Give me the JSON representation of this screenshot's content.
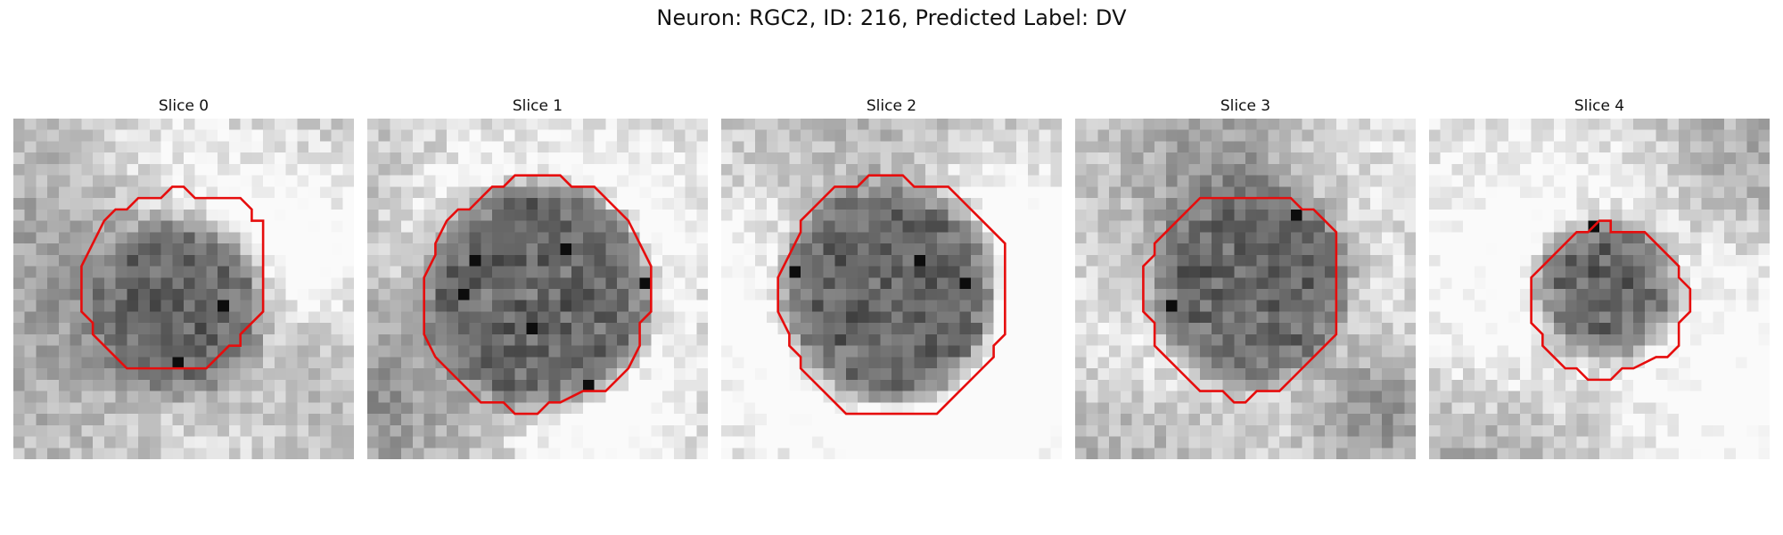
{
  "figure": {
    "title": "Neuron: RGC2, ID: 216, Predicted Label: DV"
  },
  "panels": [
    {
      "label": "Slice 0",
      "grid_size": 30,
      "contour_color": "#e60d0d",
      "image_description_tag": "grayscale-microscopy-tile",
      "dark_center": [
        14.5,
        16.5
      ],
      "dark_radius": 7.5,
      "brightness_bias": 0.05,
      "contour": [
        [
          14,
          6
        ],
        [
          15,
          6
        ],
        [
          16,
          7
        ],
        [
          20,
          7
        ],
        [
          21,
          8
        ],
        [
          21,
          9
        ],
        [
          22,
          9
        ],
        [
          22,
          12
        ],
        [
          22,
          17
        ],
        [
          21,
          18
        ],
        [
          20,
          19
        ],
        [
          20,
          20
        ],
        [
          19,
          20
        ],
        [
          18,
          21
        ],
        [
          17,
          22
        ],
        [
          17,
          22
        ],
        [
          10,
          22
        ],
        [
          9,
          21
        ],
        [
          8,
          20
        ],
        [
          7,
          19
        ],
        [
          7,
          18
        ],
        [
          6,
          17
        ],
        [
          6,
          13
        ],
        [
          7,
          11
        ],
        [
          8,
          9
        ],
        [
          9,
          8
        ],
        [
          10,
          8
        ],
        [
          11,
          7
        ],
        [
          13,
          7
        ]
      ]
    },
    {
      "label": "Slice 1",
      "grid_size": 30,
      "contour_color": "#e60d0d",
      "image_description_tag": "grayscale-microscopy-tile",
      "dark_center": [
        15,
        15.5
      ],
      "dark_radius": 10,
      "brightness_bias": 0.02,
      "contour": [
        [
          13,
          5
        ],
        [
          17,
          5
        ],
        [
          18,
          6
        ],
        [
          20,
          6
        ],
        [
          21,
          7
        ],
        [
          22,
          8
        ],
        [
          23,
          9
        ],
        [
          24,
          11
        ],
        [
          25,
          13
        ],
        [
          25,
          14
        ],
        [
          25,
          17
        ],
        [
          24,
          18
        ],
        [
          24,
          20
        ],
        [
          23,
          22
        ],
        [
          22,
          23
        ],
        [
          21,
          24
        ],
        [
          19,
          24
        ],
        [
          17,
          25
        ],
        [
          16,
          25
        ],
        [
          15,
          26
        ],
        [
          13,
          26
        ],
        [
          12,
          25
        ],
        [
          10,
          25
        ],
        [
          9,
          24
        ],
        [
          8,
          23
        ],
        [
          7,
          22
        ],
        [
          6,
          21
        ],
        [
          5,
          19
        ],
        [
          5,
          18
        ],
        [
          5,
          15
        ],
        [
          5,
          14
        ],
        [
          6,
          12
        ],
        [
          6,
          11
        ],
        [
          7,
          9
        ],
        [
          8,
          8
        ],
        [
          9,
          8
        ],
        [
          10,
          7
        ],
        [
          11,
          6
        ],
        [
          12,
          6
        ]
      ]
    },
    {
      "label": "Slice 2",
      "grid_size": 30,
      "contour_color": "#e60d0d",
      "image_description_tag": "grayscale-microscopy-tile",
      "dark_center": [
        15,
        15.5
      ],
      "dark_radius": 9.8,
      "brightness_bias": 0.08,
      "contour": [
        [
          13,
          5
        ],
        [
          14,
          5
        ],
        [
          16,
          5
        ],
        [
          17,
          6
        ],
        [
          18,
          6
        ],
        [
          20,
          6
        ],
        [
          21,
          7
        ],
        [
          22,
          8
        ],
        [
          23,
          9
        ],
        [
          24,
          10
        ],
        [
          25,
          11
        ],
        [
          25,
          13
        ],
        [
          25,
          17
        ],
        [
          25,
          19
        ],
        [
          24,
          20
        ],
        [
          24,
          21
        ],
        [
          23,
          22
        ],
        [
          22,
          23
        ],
        [
          21,
          24
        ],
        [
          20,
          25
        ],
        [
          19,
          26
        ],
        [
          11,
          26
        ],
        [
          10,
          25
        ],
        [
          9,
          24
        ],
        [
          8,
          23
        ],
        [
          7,
          22
        ],
        [
          7,
          21
        ],
        [
          6,
          20
        ],
        [
          6,
          19
        ],
        [
          5,
          17
        ],
        [
          5,
          14
        ],
        [
          6,
          12
        ],
        [
          7,
          10
        ],
        [
          7,
          9
        ],
        [
          8,
          8
        ],
        [
          9,
          7
        ],
        [
          10,
          6
        ],
        [
          12,
          6
        ]
      ]
    },
    {
      "label": "Slice 3",
      "grid_size": 30,
      "contour_color": "#e60d0d",
      "image_description_tag": "grayscale-microscopy-tile",
      "dark_center": [
        15.5,
        14.5
      ],
      "dark_radius": 8.6,
      "brightness_bias": 0.1,
      "contour": [
        [
          11,
          7
        ],
        [
          19,
          7
        ],
        [
          20,
          8
        ],
        [
          21,
          8
        ],
        [
          22,
          9
        ],
        [
          23,
          10
        ],
        [
          23,
          19
        ],
        [
          22,
          20
        ],
        [
          21,
          21
        ],
        [
          20,
          22
        ],
        [
          19,
          23
        ],
        [
          18,
          24
        ],
        [
          16,
          24
        ],
        [
          15,
          25
        ],
        [
          14,
          25
        ],
        [
          13,
          24
        ],
        [
          11,
          24
        ],
        [
          10,
          23
        ],
        [
          9,
          22
        ],
        [
          8,
          21
        ],
        [
          7,
          20
        ],
        [
          7,
          18
        ],
        [
          6,
          17
        ],
        [
          6,
          13
        ],
        [
          7,
          12
        ],
        [
          7,
          11
        ],
        [
          8,
          10
        ],
        [
          9,
          9
        ],
        [
          10,
          8
        ]
      ]
    },
    {
      "label": "Slice 4",
      "grid_size": 30,
      "contour_color": "#e60d0d",
      "image_description_tag": "grayscale-microscopy-tile",
      "dark_center": [
        15.5,
        15
      ],
      "dark_radius": 6,
      "brightness_bias": 0.12,
      "contour": [
        [
          15,
          9
        ],
        [
          16,
          9
        ],
        [
          16,
          10
        ],
        [
          19,
          10
        ],
        [
          20,
          11
        ],
        [
          21,
          12
        ],
        [
          22,
          13
        ],
        [
          22,
          14
        ],
        [
          23,
          15
        ],
        [
          23,
          17
        ],
        [
          22,
          18
        ],
        [
          22,
          20
        ],
        [
          21,
          21
        ],
        [
          20,
          21
        ],
        [
          18,
          22
        ],
        [
          17,
          22
        ],
        [
          16,
          23
        ],
        [
          14,
          23
        ],
        [
          13,
          22
        ],
        [
          12,
          22
        ],
        [
          11,
          21
        ],
        [
          10,
          20
        ],
        [
          10,
          19
        ],
        [
          9,
          18
        ],
        [
          9,
          14
        ],
        [
          10,
          13
        ],
        [
          11,
          12
        ],
        [
          12,
          11
        ],
        [
          13,
          10
        ],
        [
          14,
          10
        ]
      ]
    }
  ]
}
